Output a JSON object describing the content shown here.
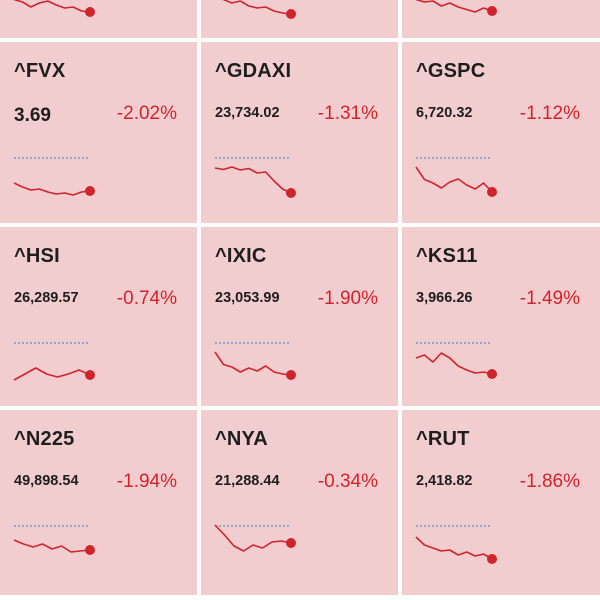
{
  "colors": {
    "tile_bg": "#f2cdcf",
    "negative": "#d0242b",
    "reference_line": "#5b8fd8",
    "uptick": "#2e9a5a"
  },
  "tiles": [
    {
      "symbol": "",
      "price": "",
      "change": "",
      "trend": [
        0.55,
        0.6,
        0.7,
        0.62,
        0.58,
        0.66,
        0.72,
        0.7,
        0.78,
        0.8
      ]
    },
    {
      "symbol": "",
      "price": "",
      "change": "",
      "trend": [
        0.5,
        0.55,
        0.62,
        0.58,
        0.68,
        0.72,
        0.7,
        0.78,
        0.82,
        0.84
      ]
    },
    {
      "symbol": "",
      "price": "",
      "change": "",
      "trend": [
        0.55,
        0.6,
        0.58,
        0.68,
        0.62,
        0.7,
        0.75,
        0.8,
        0.72,
        0.78
      ]
    },
    {
      "symbol": "^FVX",
      "price": "3.69",
      "change": "-2.02%",
      "trend": [
        0.62,
        0.7,
        0.76,
        0.74,
        0.8,
        0.84,
        0.82,
        0.86,
        0.8,
        0.78
      ]
    },
    {
      "symbol": "^GDAXI",
      "price": "23,734.02",
      "change": "-1.31%",
      "trend": [
        0.32,
        0.35,
        0.3,
        0.36,
        0.33,
        0.42,
        0.4,
        0.58,
        0.74,
        0.82
      ]
    },
    {
      "symbol": "^GSPC",
      "price": "6,720.32",
      "change": "-1.12%",
      "trend": [
        0.3,
        0.55,
        0.62,
        0.72,
        0.6,
        0.54,
        0.66,
        0.74,
        0.62,
        0.8
      ]
    },
    {
      "symbol": "^HSI",
      "price": "26,289.57",
      "change": "-0.74%",
      "trend": [
        0.86,
        0.74,
        0.62,
        0.74,
        0.8,
        0.74,
        0.66,
        0.76
      ]
    },
    {
      "symbol": "^IXIC",
      "price": "23,053.99",
      "change": "-1.90%",
      "trend": [
        0.3,
        0.55,
        0.6,
        0.7,
        0.62,
        0.68,
        0.58,
        0.7,
        0.74,
        0.76
      ]
    },
    {
      "symbol": "^KS11",
      "price": "3,966.26",
      "change": "-1.49%",
      "trend": [
        0.42,
        0.36,
        0.5,
        0.32,
        0.42,
        0.58,
        0.66,
        0.72,
        0.7,
        0.74
      ]
    },
    {
      "symbol": "^N225",
      "price": "49,898.54",
      "change": "-1.94%",
      "trend": [
        0.4,
        0.48,
        0.54,
        0.48,
        0.58,
        0.52,
        0.64,
        0.62,
        0.6
      ]
    },
    {
      "symbol": "^NYA",
      "price": "21,288.44",
      "change": "-0.34%",
      "trend": [
        0.1,
        0.3,
        0.52,
        0.62,
        0.5,
        0.56,
        0.44,
        0.42,
        0.46
      ]
    },
    {
      "symbol": "^RUT",
      "price": "2,418.82",
      "change": "-1.86%",
      "trend": [
        0.34,
        0.5,
        0.56,
        0.62,
        0.6,
        0.7,
        0.64,
        0.72,
        0.68,
        0.78
      ]
    }
  ]
}
